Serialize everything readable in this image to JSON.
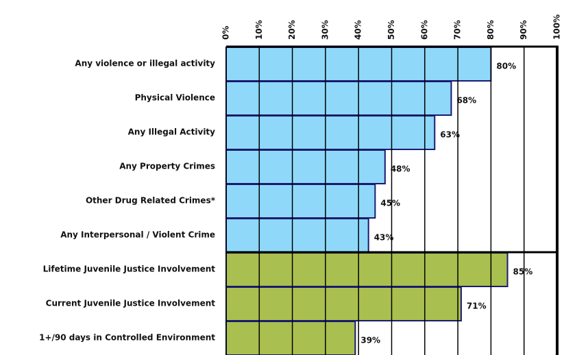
{
  "chart_data": {
    "type": "barh",
    "categories": [
      "Any violence or illegal activity",
      "Physical Violence",
      "Any Illegal Activity",
      "Any Property Crimes",
      "Other Drug Related Crimes*",
      "Any Interpersonal / Violent Crime",
      "Lifetime Juvenile Justice Involvement",
      "Current Juvenile Justice Involvement",
      "1+/90 days in Controlled Environment"
    ],
    "values": [
      80,
      68,
      63,
      48,
      45,
      43,
      85,
      71,
      39
    ],
    "value_labels": [
      "80%",
      "68%",
      "63%",
      "48%",
      "45%",
      "43%",
      "85%",
      "71%",
      "39%"
    ],
    "colors": [
      "#8fd8fa",
      "#8fd8fa",
      "#8fd8fa",
      "#8fd8fa",
      "#8fd8fa",
      "#8fd8fa",
      "#a9bf4f",
      "#a9bf4f",
      "#a9bf4f"
    ],
    "xlim": [
      0,
      100
    ],
    "xticks": [
      {
        "value": 0,
        "label": "0%"
      },
      {
        "value": 10,
        "label": "10%"
      },
      {
        "value": 20,
        "label": "20%"
      },
      {
        "value": 30,
        "label": "30%"
      },
      {
        "value": 40,
        "label": "40%"
      },
      {
        "value": 50,
        "label": "50%"
      },
      {
        "value": 60,
        "label": "60%"
      },
      {
        "value": 70,
        "label": "70%"
      },
      {
        "value": 80,
        "label": "80%"
      },
      {
        "value": 90,
        "label": "90%"
      },
      {
        "value": 100,
        "label": "100%"
      }
    ],
    "grid": true
  }
}
